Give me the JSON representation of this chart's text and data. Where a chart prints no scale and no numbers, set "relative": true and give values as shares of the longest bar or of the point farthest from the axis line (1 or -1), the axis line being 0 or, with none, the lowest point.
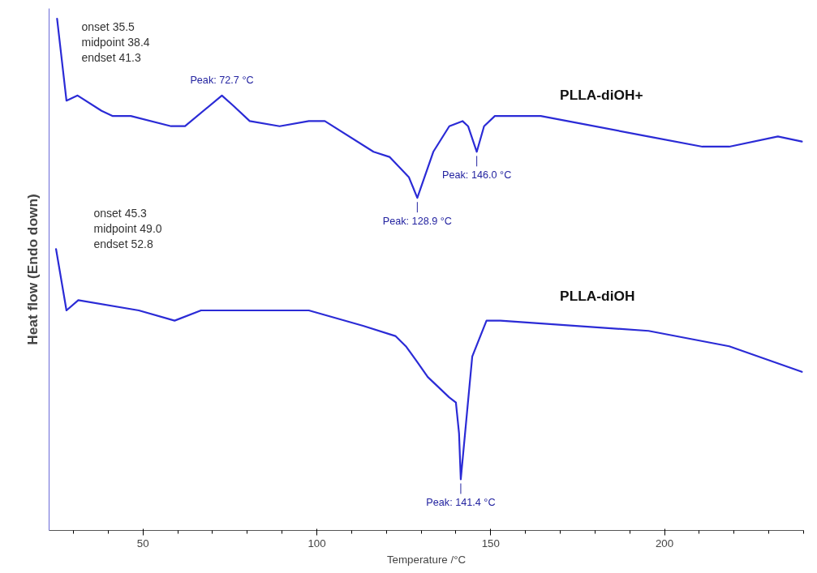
{
  "chart_data": {
    "type": "line",
    "relative": true,
    "xlabel": "Temperature /°C",
    "ylabel": "Heat flow (Endo down)",
    "xlim": [
      23,
      240
    ],
    "xticks": [
      50,
      100,
      150,
      200
    ],
    "tick_labels": "x",
    "grid": false,
    "series": [
      {
        "name": "PLLA-diOH+",
        "color": "#2b2bd6",
        "x": [
          25.3,
          28.0,
          31.2,
          38.1,
          41.2,
          46.5,
          58.1,
          62.1,
          72.7,
          76.0,
          80.7,
          89.3,
          97.7,
          102.3,
          116.3,
          120.9,
          126.5,
          128.9,
          133.5,
          138.1,
          141.9,
          143.5,
          146.0,
          148.1,
          151.2,
          164.4,
          172.1,
          195.3,
          210.9,
          218.6,
          232.6,
          239.5
        ],
        "values": [
          1.0,
          0.84,
          0.85,
          0.82,
          0.81,
          0.81,
          0.79,
          0.79,
          0.85,
          0.83,
          0.8,
          0.79,
          0.8,
          0.8,
          0.74,
          0.73,
          0.69,
          0.65,
          0.74,
          0.79,
          0.8,
          0.79,
          0.74,
          0.79,
          0.81,
          0.81,
          0.8,
          0.77,
          0.75,
          0.75,
          0.77,
          0.76
        ]
      },
      {
        "name": "PLLA-diOH",
        "color": "#2b2bd6",
        "x": [
          25.0,
          28.0,
          31.4,
          48.8,
          59.1,
          66.7,
          82.3,
          97.7,
          113.3,
          122.6,
          125.6,
          128.8,
          131.9,
          138.1,
          140.0,
          140.9,
          141.4,
          144.7,
          148.8,
          152.8,
          195.4,
          218.6,
          239.5
        ],
        "values": [
          0.55,
          0.43,
          0.45,
          0.43,
          0.41,
          0.43,
          0.43,
          0.43,
          0.4,
          0.38,
          0.36,
          0.33,
          0.3,
          0.26,
          0.25,
          0.19,
          0.1,
          0.34,
          0.41,
          0.41,
          0.39,
          0.36,
          0.31
        ]
      }
    ],
    "annotations": [
      "onset 35.5\nmidpoint 38.4\nendset 41.3",
      "onset 45.3\nmidpoint 49.0\nendset 52.8",
      {
        "text": "Peak: 72.7 °C",
        "x": 72.7,
        "y": 0.85
      },
      {
        "text": "Peak: 128.9 °C",
        "x": 128.9,
        "y": 0.65
      },
      {
        "text": "Peak: 146.0 °C",
        "x": 146.0,
        "y": 0.74
      },
      {
        "text": "Peak: 141.4 °C",
        "x": 141.4,
        "y": 0.1
      }
    ]
  }
}
